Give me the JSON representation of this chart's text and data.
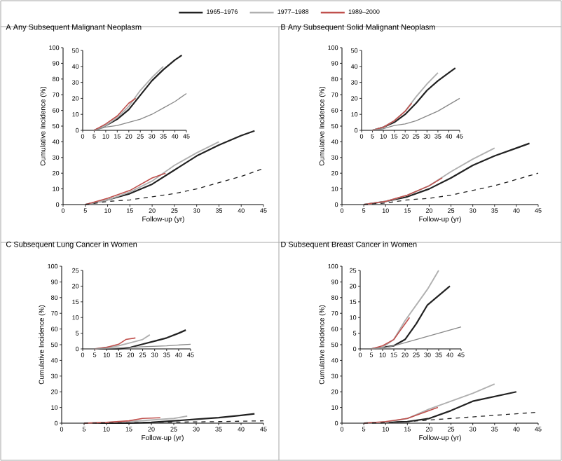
{
  "chart_data": [
    {
      "type": "line",
      "title": "A  Any Subsequent Malignant Neoplasm",
      "xlabel": "Follow-up (yr)",
      "ylabel": "Cumulative Incidence (%)",
      "legend": "top",
      "xlim": [
        0,
        45
      ],
      "xticks": [
        0,
        5,
        10,
        15,
        20,
        25,
        30,
        35,
        40,
        45
      ],
      "ylim": [
        0,
        100
      ],
      "yticks": [
        0,
        10,
        20,
        30,
        40,
        50,
        60,
        70,
        80,
        90,
        100
      ],
      "series": [
        {
          "name": "1965–1976",
          "color": "#222222",
          "x": [
            5,
            10,
            15,
            20,
            25,
            30,
            35,
            40,
            43
          ],
          "values": [
            0,
            3,
            7,
            13,
            22,
            31,
            38,
            44,
            47
          ]
        },
        {
          "name": "1977–1988",
          "color": "#b0b0b0",
          "x": [
            5,
            10,
            15,
            20,
            25,
            30,
            35
          ],
          "values": [
            0,
            3,
            8,
            15,
            25,
            33,
            40
          ]
        },
        {
          "name": "1989–2000",
          "color": "#c0504d",
          "x": [
            5,
            10,
            15,
            20,
            23
          ],
          "values": [
            0,
            4,
            9,
            17,
            20
          ]
        },
        {
          "color": "#222222",
          "line_style": "dashed",
          "x": [
            5,
            10,
            15,
            20,
            25,
            30,
            35,
            40,
            45
          ],
          "values": [
            0,
            2,
            3,
            5,
            7,
            10,
            14,
            18,
            23
          ]
        }
      ]
    },
    {
      "type": "line",
      "xlim": [
        0,
        45
      ],
      "xticks": [
        0,
        5,
        10,
        15,
        20,
        25,
        30,
        35,
        40,
        45
      ],
      "ylim": [
        0,
        50
      ],
      "yticks": [
        0,
        10,
        20,
        30,
        40,
        50
      ],
      "series": [
        {
          "color": "#222222",
          "x": [
            5,
            10,
            15,
            20,
            25,
            30,
            35,
            40,
            43
          ],
          "values": [
            0,
            3,
            7,
            13,
            22,
            31,
            38,
            44,
            47
          ]
        },
        {
          "color": "#b0b0b0",
          "x": [
            5,
            10,
            15,
            20,
            25,
            30,
            35
          ],
          "values": [
            0,
            3,
            8,
            15,
            25,
            33,
            40
          ]
        },
        {
          "color": "#c0504d",
          "x": [
            5,
            10,
            15,
            20,
            23
          ],
          "values": [
            0,
            4,
            9,
            17,
            20
          ]
        },
        {
          "color": "#888888",
          "x": [
            5,
            10,
            15,
            20,
            25,
            30,
            35,
            40,
            45
          ],
          "values": [
            0,
            2,
            3,
            5,
            7,
            10,
            14,
            18,
            23
          ]
        }
      ]
    },
    {
      "type": "line",
      "title": "B  Any Subsequent Solid Malignant Neoplasm",
      "xlabel": "Follow-up (yr)",
      "ylabel": "Cumulative Incidence (%)",
      "xlim": [
        0,
        45
      ],
      "xticks": [
        0,
        5,
        10,
        15,
        20,
        25,
        30,
        35,
        40,
        45
      ],
      "ylim": [
        0,
        100
      ],
      "yticks": [
        0,
        10,
        20,
        30,
        40,
        50,
        60,
        70,
        80,
        90,
        100
      ],
      "series": [
        {
          "color": "#222222",
          "x": [
            5,
            10,
            15,
            20,
            25,
            30,
            35,
            40,
            43
          ],
          "values": [
            0,
            2,
            5,
            10,
            17,
            25,
            31,
            36,
            39
          ]
        },
        {
          "color": "#b0b0b0",
          "x": [
            5,
            10,
            15,
            20,
            25,
            30,
            35
          ],
          "values": [
            0,
            2,
            6,
            12,
            21,
            29,
            36
          ]
        },
        {
          "color": "#c0504d",
          "x": [
            5,
            10,
            15,
            20,
            23
          ],
          "values": [
            0,
            2,
            6,
            12,
            17
          ]
        },
        {
          "color": "#222222",
          "line_style": "dashed",
          "x": [
            5,
            10,
            15,
            20,
            25,
            30,
            35,
            40,
            45
          ],
          "values": [
            0,
            1,
            3,
            4,
            6,
            9,
            12,
            16,
            20
          ]
        }
      ]
    },
    {
      "type": "line",
      "xlim": [
        0,
        45
      ],
      "xticks": [
        0,
        5,
        10,
        15,
        20,
        25,
        30,
        35,
        40,
        45
      ],
      "ylim": [
        0,
        50
      ],
      "yticks": [
        0,
        10,
        20,
        30,
        40,
        50
      ],
      "series": [
        {
          "color": "#222222",
          "x": [
            5,
            10,
            15,
            20,
            25,
            30,
            35,
            40,
            43
          ],
          "values": [
            0,
            2,
            5,
            10,
            17,
            25,
            31,
            36,
            39
          ]
        },
        {
          "color": "#b0b0b0",
          "x": [
            5,
            10,
            15,
            20,
            25,
            30,
            35
          ],
          "values": [
            0,
            2,
            6,
            12,
            21,
            29,
            36
          ]
        },
        {
          "color": "#c0504d",
          "x": [
            5,
            10,
            15,
            20,
            23
          ],
          "values": [
            0,
            2,
            6,
            12,
            17
          ]
        },
        {
          "color": "#888888",
          "x": [
            5,
            10,
            15,
            20,
            25,
            30,
            35,
            40,
            45
          ],
          "values": [
            0,
            1,
            3,
            4,
            6,
            9,
            12,
            16,
            20
          ]
        }
      ]
    },
    {
      "type": "line",
      "title": "C  Subsequent Lung Cancer in Women",
      "xlabel": "Follow-up (yr)",
      "ylabel": "Cumulative Incidence (%)",
      "xlim": [
        0,
        45
      ],
      "xticks": [
        0,
        5,
        10,
        15,
        20,
        25,
        30,
        35,
        40,
        45
      ],
      "ylim": [
        0,
        100
      ],
      "yticks": [
        0,
        10,
        20,
        30,
        40,
        50,
        60,
        70,
        80,
        90,
        100
      ],
      "series": [
        {
          "color": "#222222",
          "x": [
            5,
            15,
            20,
            25,
            30,
            35,
            40,
            43
          ],
          "values": [
            0,
            0,
            0.5,
            1.5,
            2.5,
            3.5,
            5,
            6
          ]
        },
        {
          "color": "#b0b0b0",
          "x": [
            5,
            10,
            15,
            20,
            25,
            28
          ],
          "values": [
            0,
            0.5,
            1,
            2,
            3,
            4.5
          ]
        },
        {
          "color": "#c0504d",
          "x": [
            5,
            10,
            15,
            18,
            22
          ],
          "values": [
            0,
            0.5,
            1.5,
            3,
            3.5
          ]
        },
        {
          "color": "#222222",
          "line_style": "dashed",
          "x": [
            5,
            15,
            25,
            35,
            45
          ],
          "values": [
            0,
            0.3,
            0.7,
            1,
            1.5
          ]
        }
      ]
    },
    {
      "type": "line",
      "xlim": [
        0,
        45
      ],
      "xticks": [
        0,
        5,
        10,
        15,
        20,
        25,
        30,
        35,
        40,
        45
      ],
      "ylim": [
        0,
        25
      ],
      "yticks": [
        0,
        5,
        10,
        15,
        20,
        25
      ],
      "series": [
        {
          "color": "#222222",
          "x": [
            5,
            15,
            20,
            25,
            30,
            35,
            40,
            43
          ],
          "values": [
            0,
            0,
            0.5,
            1.5,
            2.5,
            3.5,
            5,
            6
          ]
        },
        {
          "color": "#b0b0b0",
          "x": [
            5,
            10,
            15,
            20,
            25,
            28
          ],
          "values": [
            0,
            0.5,
            1,
            2,
            3,
            4.5
          ]
        },
        {
          "color": "#c0504d",
          "x": [
            5,
            10,
            15,
            18,
            22
          ],
          "values": [
            0,
            0.5,
            1.5,
            3,
            3.5
          ]
        },
        {
          "color": "#888888",
          "x": [
            5,
            15,
            25,
            35,
            45
          ],
          "values": [
            0,
            0.3,
            0.7,
            1,
            1.5
          ]
        }
      ]
    },
    {
      "type": "line",
      "title": "D  Subsequent Breast Cancer in Women",
      "xlabel": "Follow-up (yr)",
      "ylabel": "Cumulative Incidence (%)",
      "xlim": [
        0,
        45
      ],
      "xticks": [
        0,
        5,
        10,
        15,
        20,
        25,
        30,
        35,
        40,
        45
      ],
      "ylim": [
        0,
        100
      ],
      "yticks": [
        0,
        10,
        20,
        30,
        40,
        50,
        60,
        70,
        80,
        90,
        100
      ],
      "series": [
        {
          "color": "#222222",
          "x": [
            5,
            10,
            15,
            20,
            25,
            30,
            35,
            40
          ],
          "values": [
            0,
            0.5,
            1,
            3,
            8,
            14,
            17,
            20
          ]
        },
        {
          "color": "#b0b0b0",
          "x": [
            5,
            10,
            15,
            20,
            25,
            30,
            35
          ],
          "values": [
            0,
            0.5,
            3,
            9,
            14,
            19,
            25
          ]
        },
        {
          "color": "#c0504d",
          "x": [
            5,
            10,
            15,
            18,
            20,
            22
          ],
          "values": [
            0,
            1,
            3,
            6,
            8,
            10
          ]
        },
        {
          "color": "#222222",
          "line_style": "dashed",
          "x": [
            5,
            10,
            15,
            20,
            25,
            30,
            35,
            40,
            45
          ],
          "values": [
            0,
            0.3,
            1,
            2,
            3,
            4,
            5,
            6,
            7
          ]
        }
      ]
    },
    {
      "type": "line",
      "xlim": [
        0,
        45
      ],
      "xticks": [
        0,
        5,
        10,
        15,
        20,
        25,
        30,
        35,
        40,
        45
      ],
      "ylim": [
        0,
        25
      ],
      "yticks": [
        0,
        5,
        10,
        15,
        20,
        25
      ],
      "series": [
        {
          "color": "#222222",
          "x": [
            5,
            10,
            15,
            20,
            25,
            30,
            35,
            40
          ],
          "values": [
            0,
            0.5,
            1,
            3,
            8,
            14,
            17,
            20
          ]
        },
        {
          "color": "#b0b0b0",
          "x": [
            5,
            10,
            15,
            20,
            25,
            30,
            35
          ],
          "values": [
            0,
            0.5,
            3,
            9,
            14,
            19,
            25
          ]
        },
        {
          "color": "#c0504d",
          "x": [
            5,
            10,
            15,
            18,
            20,
            22
          ],
          "values": [
            0,
            1,
            3,
            6,
            8,
            10
          ]
        },
        {
          "color": "#888888",
          "x": [
            5,
            10,
            15,
            20,
            25,
            30,
            35,
            40,
            45
          ],
          "values": [
            0,
            0.3,
            1,
            2,
            3,
            4,
            5,
            6,
            7
          ]
        }
      ]
    }
  ]
}
